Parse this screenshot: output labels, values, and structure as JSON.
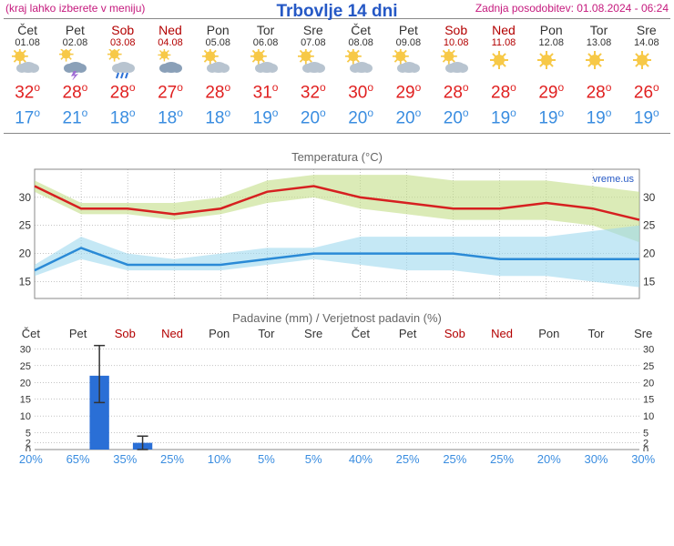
{
  "header": {
    "left": "(kraj lahko izberete v meniju)",
    "title": "Trbovlje 14 dni",
    "right": "Zadnja posodobitev: 01.08.2024 - 06:24"
  },
  "days": [
    {
      "name": "Čet",
      "date": "01.08",
      "weekend": false,
      "icon": "sun-cloud",
      "max": 32,
      "min": 17
    },
    {
      "name": "Pet",
      "date": "02.08",
      "weekend": false,
      "icon": "storm",
      "max": 28,
      "min": 21
    },
    {
      "name": "Sob",
      "date": "03.08",
      "weekend": true,
      "icon": "rain",
      "max": 28,
      "min": 18
    },
    {
      "name": "Ned",
      "date": "04.08",
      "weekend": true,
      "icon": "cloud-sun",
      "max": 27,
      "min": 18
    },
    {
      "name": "Pon",
      "date": "05.08",
      "weekend": false,
      "icon": "sun-cloud",
      "max": 28,
      "min": 18
    },
    {
      "name": "Tor",
      "date": "06.08",
      "weekend": false,
      "icon": "sun-cloud",
      "max": 31,
      "min": 19
    },
    {
      "name": "Sre",
      "date": "07.08",
      "weekend": false,
      "icon": "sun-cloud",
      "max": 32,
      "min": 20
    },
    {
      "name": "Čet",
      "date": "08.08",
      "weekend": false,
      "icon": "sun-cloud",
      "max": 30,
      "min": 20
    },
    {
      "name": "Pet",
      "date": "09.08",
      "weekend": false,
      "icon": "sun-cloud",
      "max": 29,
      "min": 20
    },
    {
      "name": "Sob",
      "date": "10.08",
      "weekend": true,
      "icon": "sun-cloud",
      "max": 28,
      "min": 20
    },
    {
      "name": "Ned",
      "date": "11.08",
      "weekend": true,
      "icon": "sun",
      "max": 28,
      "min": 19
    },
    {
      "name": "Pon",
      "date": "12.08",
      "weekend": false,
      "icon": "sun",
      "max": 29,
      "min": 19
    },
    {
      "name": "Tor",
      "date": "13.08",
      "weekend": false,
      "icon": "sun",
      "max": 28,
      "min": 19
    },
    {
      "name": "Sre",
      "date": "14.08",
      "weekend": false,
      "icon": "sun",
      "max": 26,
      "min": 19
    }
  ],
  "temp_chart": {
    "title": "Temperatura (°C)",
    "watermark": "vreme.us",
    "yticks": [
      15,
      20,
      25,
      30
    ],
    "ylim": [
      12,
      35
    ],
    "grid_color": "#888888",
    "background_color": "#ffffff",
    "max_line_color": "#d62020",
    "min_line_color": "#2a8ad6",
    "max_band_color": "#c3de87",
    "min_band_color": "#9fd9ef",
    "line_width": 2.5,
    "band_opacity": 0.6,
    "max_values": [
      32,
      28,
      28,
      27,
      28,
      31,
      32,
      30,
      29,
      28,
      28,
      29,
      28,
      26
    ],
    "max_band_hi": [
      33,
      29,
      29,
      29,
      30,
      33,
      34,
      34,
      34,
      33,
      33,
      33,
      32,
      31
    ],
    "max_band_lo": [
      31,
      27,
      27,
      26,
      27,
      29,
      30,
      28,
      27,
      26,
      26,
      26,
      25,
      22
    ],
    "min_values": [
      17,
      21,
      18,
      18,
      18,
      19,
      20,
      20,
      20,
      20,
      19,
      19,
      19,
      19
    ],
    "min_band_hi": [
      18,
      23,
      20,
      19,
      20,
      21,
      21,
      23,
      23,
      23,
      23,
      23,
      24,
      25
    ],
    "min_band_lo": [
      16,
      19,
      17,
      17,
      17,
      18,
      19,
      18,
      17,
      17,
      16,
      16,
      15,
      14
    ]
  },
  "precip_chart": {
    "title": "Padavine (mm) / Verjetnost padavin (%)",
    "yticks": [
      0,
      2,
      5,
      10,
      15,
      20,
      25,
      30
    ],
    "ylim": [
      0,
      32
    ],
    "grid_color": "#888888",
    "bar_color": "#2a6fd6",
    "err_color": "#333333",
    "bar_width": 0.45,
    "days": [
      {
        "name": "Čet",
        "weekend": false,
        "mm": 0,
        "err_lo": 0,
        "err_hi": 0,
        "prob": 20
      },
      {
        "name": "Pet",
        "weekend": false,
        "mm": 22,
        "err_lo": 14,
        "err_hi": 31,
        "prob": 65
      },
      {
        "name": "Sob",
        "weekend": true,
        "mm": 2,
        "err_lo": 0,
        "err_hi": 4,
        "prob": 35
      },
      {
        "name": "Ned",
        "weekend": true,
        "mm": 0,
        "err_lo": 0,
        "err_hi": 0,
        "prob": 25
      },
      {
        "name": "Pon",
        "weekend": false,
        "mm": 0,
        "err_lo": 0,
        "err_hi": 0,
        "prob": 10
      },
      {
        "name": "Tor",
        "weekend": false,
        "mm": 0,
        "err_lo": 0,
        "err_hi": 0,
        "prob": 5
      },
      {
        "name": "Sre",
        "weekend": false,
        "mm": 0,
        "err_lo": 0,
        "err_hi": 0,
        "prob": 5
      },
      {
        "name": "Čet",
        "weekend": false,
        "mm": 0,
        "err_lo": 0,
        "err_hi": 0,
        "prob": 40
      },
      {
        "name": "Pet",
        "weekend": false,
        "mm": 0,
        "err_lo": 0,
        "err_hi": 0,
        "prob": 25
      },
      {
        "name": "Sob",
        "weekend": true,
        "mm": 0,
        "err_lo": 0,
        "err_hi": 0,
        "prob": 25
      },
      {
        "name": "Ned",
        "weekend": true,
        "mm": 0,
        "err_lo": 0,
        "err_hi": 0,
        "prob": 25
      },
      {
        "name": "Pon",
        "weekend": false,
        "mm": 0,
        "err_lo": 0,
        "err_hi": 0,
        "prob": 20
      },
      {
        "name": "Tor",
        "weekend": false,
        "mm": 0,
        "err_lo": 0,
        "err_hi": 0,
        "prob": 30
      },
      {
        "name": "Sre",
        "weekend": false,
        "mm": 0,
        "err_lo": 0,
        "err_hi": 0,
        "prob": 30
      }
    ]
  },
  "icons": {
    "sun_color": "#f7c948",
    "cloud_color": "#b8c4d0",
    "cloud_dark": "#8aa0b8",
    "rain_color": "#2a6fd6",
    "storm_color": "#a06cd5"
  }
}
